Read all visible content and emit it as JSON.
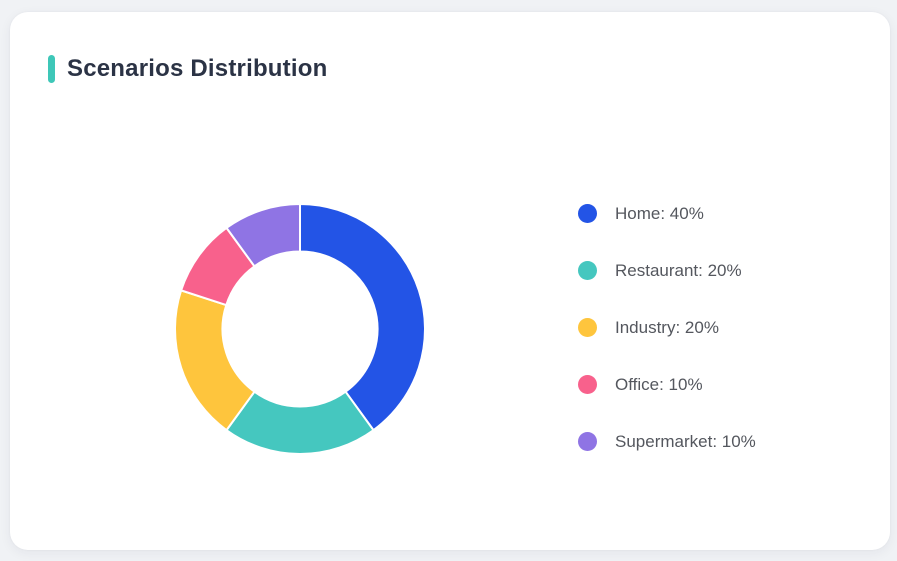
{
  "page": {
    "background_color": "#f0f2f5",
    "card_background": "#ffffff"
  },
  "header": {
    "title": "Scenarios Distribution",
    "accent_color": "#3ec7b8",
    "title_color": "#2b3345"
  },
  "legend": {
    "text_color": "#54575e",
    "position": "right"
  },
  "chart_data": {
    "type": "pie",
    "subtype": "donut",
    "title": "Scenarios Distribution",
    "unit": "%",
    "start_angle_deg": 0,
    "direction": "clockwise",
    "inner_radius_ratio": 0.62,
    "legend_position": "right",
    "separator_color": "#ffffff",
    "series": [
      {
        "name": "Home",
        "value": 40,
        "color": "#2354e6"
      },
      {
        "name": "Restaurant",
        "value": 20,
        "color": "#45c7bf"
      },
      {
        "name": "Industry",
        "value": 20,
        "color": "#fec53d"
      },
      {
        "name": "Office",
        "value": 10,
        "color": "#f8618c"
      },
      {
        "name": "Supermarket",
        "value": 10,
        "color": "#8f74e4"
      }
    ],
    "legend_labels": [
      "Home: 40%",
      "Restaurant: 20%",
      "Industry: 20%",
      "Office: 10%",
      "Supermarket: 10%"
    ]
  }
}
